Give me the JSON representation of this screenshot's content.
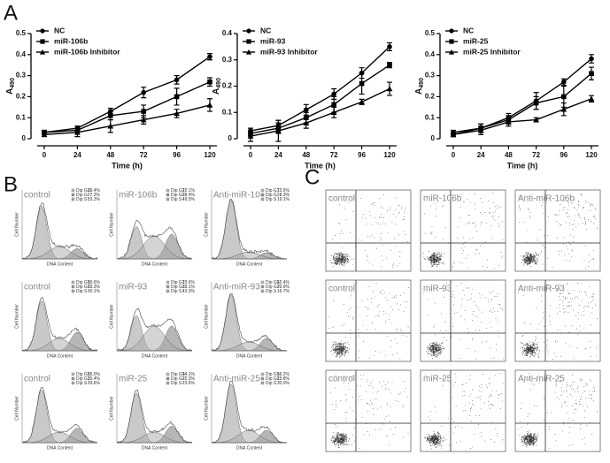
{
  "panel_labels": [
    "A",
    "B",
    "C"
  ],
  "chart_data": [
    {
      "type": "line",
      "x": [
        0,
        24,
        48,
        72,
        96,
        120
      ],
      "xlim": [
        0,
        120
      ],
      "xticks": [
        0,
        24,
        48,
        72,
        96,
        120
      ],
      "ylim": [
        0,
        0.5
      ],
      "yticks": [
        0,
        0.1,
        0.2,
        0.3,
        0.4,
        0.5
      ],
      "xlabel": "Time (h)",
      "ylabel": "A",
      "ylabel_sub": "490",
      "legend": "upper left",
      "series": [
        {
          "name": "NC",
          "color": "#000000",
          "marker": "circle",
          "values": [
            0.03,
            0.05,
            0.13,
            0.22,
            0.28,
            0.39
          ],
          "errors": [
            0.01,
            0.01,
            0.015,
            0.025,
            0.02,
            0.015
          ]
        },
        {
          "name": "miR-106b",
          "color": "#000000",
          "marker": "square",
          "values": [
            0.03,
            0.04,
            0.11,
            0.13,
            0.2,
            0.27
          ],
          "errors": [
            0.01,
            0.01,
            0.02,
            0.03,
            0.04,
            0.02
          ]
        },
        {
          "name": "miR-106b Inhibitor",
          "color": "#000000",
          "marker": "triangle",
          "values": [
            0.02,
            0.03,
            0.06,
            0.09,
            0.12,
            0.16
          ],
          "errors": [
            0.01,
            0.02,
            0.03,
            0.02,
            0.02,
            0.03
          ]
        }
      ]
    },
    {
      "type": "line",
      "x": [
        0,
        24,
        48,
        72,
        96,
        120
      ],
      "xlim": [
        0,
        120
      ],
      "xticks": [
        0,
        24,
        48,
        72,
        96,
        120
      ],
      "ylim": [
        0,
        0.4
      ],
      "yticks": [
        0,
        0.1,
        0.2,
        0.3,
        0.4
      ],
      "xlabel": "Time (h)",
      "ylabel": "A",
      "ylabel_sub": "490",
      "legend": "upper left",
      "series": [
        {
          "name": "NC",
          "color": "#000000",
          "marker": "circle",
          "values": [
            0.03,
            0.05,
            0.11,
            0.17,
            0.25,
            0.35
          ],
          "errors": [
            0.01,
            0.02,
            0.02,
            0.02,
            0.02,
            0.015
          ]
        },
        {
          "name": "miR-93",
          "color": "#000000",
          "marker": "square",
          "values": [
            0.02,
            0.04,
            0.08,
            0.13,
            0.21,
            0.28
          ],
          "errors": [
            0.01,
            0.02,
            0.02,
            0.03,
            0.04,
            0.01
          ]
        },
        {
          "name": "miR-93 Inhibitor",
          "color": "#000000",
          "marker": "triangle",
          "values": [
            0.01,
            0.03,
            0.06,
            0.1,
            0.14,
            0.19
          ],
          "errors": [
            0.02,
            0.04,
            0.02,
            0.02,
            0.01,
            0.025
          ]
        }
      ]
    },
    {
      "type": "line",
      "x": [
        0,
        24,
        48,
        72,
        96,
        120
      ],
      "xlim": [
        0,
        120
      ],
      "xticks": [
        0,
        24,
        48,
        72,
        96,
        120
      ],
      "ylim": [
        0,
        0.5
      ],
      "yticks": [
        0,
        0.1,
        0.2,
        0.3,
        0.4,
        0.5
      ],
      "xlabel": "Time (h)",
      "ylabel": "A",
      "ylabel_sub": "490",
      "legend": "upper left",
      "series": [
        {
          "name": "NC",
          "color": "#000000",
          "marker": "circle",
          "values": [
            0.03,
            0.05,
            0.1,
            0.18,
            0.27,
            0.38
          ],
          "errors": [
            0.01,
            0.02,
            0.02,
            0.04,
            0.015,
            0.02
          ]
        },
        {
          "name": "miR-25",
          "color": "#000000",
          "marker": "square",
          "values": [
            0.02,
            0.05,
            0.09,
            0.17,
            0.2,
            0.31
          ],
          "errors": [
            0.01,
            0.02,
            0.02,
            0.03,
            0.05,
            0.03
          ]
        },
        {
          "name": "miR-25 Inhibitor",
          "color": "#000000",
          "marker": "triangle",
          "values": [
            0.02,
            0.04,
            0.08,
            0.09,
            0.14,
            0.19
          ],
          "errors": [
            0.01,
            0.02,
            0.02,
            0.01,
            0.03,
            0.015
          ]
        }
      ]
    }
  ],
  "cell_cycle": {
    "x_label": "DNA Content",
    "y_label": "Cell Number",
    "stat_labels": [
      "Dip G1:",
      "Dip G2:",
      "Dip S :"
    ],
    "samples": [
      {
        "label": "control",
        "stats": [
          "39.4%",
          "7.3%",
          "53.3%"
        ]
      },
      {
        "label": "miR-106b",
        "stats": [
          "22.1%",
          "28.4%",
          "49.5%"
        ]
      },
      {
        "label": "Anti-miR-106b",
        "stats": [
          "72.6%",
          "8.3%",
          "19.1%"
        ]
      },
      {
        "label": "control",
        "stats": [
          "50.6%",
          "19.3%",
          "30.1%"
        ]
      },
      {
        "label": "miR-93",
        "stats": [
          "23.6%",
          "33.1%",
          "43.3%"
        ]
      },
      {
        "label": "Anti-miR-93",
        "stats": [
          "62.4%",
          "20.9%",
          "16.7%"
        ]
      },
      {
        "label": "control",
        "stats": [
          "55.0%",
          "15.4%",
          "29.6%"
        ]
      },
      {
        "label": "miR-25",
        "stats": [
          "54.1%",
          "22.3%",
          "23.6%"
        ]
      },
      {
        "label": "Anti-miR-25",
        "stats": [
          "56.2%",
          "13.8%",
          "30.0%"
        ]
      }
    ]
  },
  "flow": {
    "samples": [
      "control",
      "miR-106b",
      "Anti-miR-106b",
      "control",
      "miR-93",
      "Anti-miR-93",
      "control",
      "miR-25",
      "Anti-miR-25"
    ]
  }
}
